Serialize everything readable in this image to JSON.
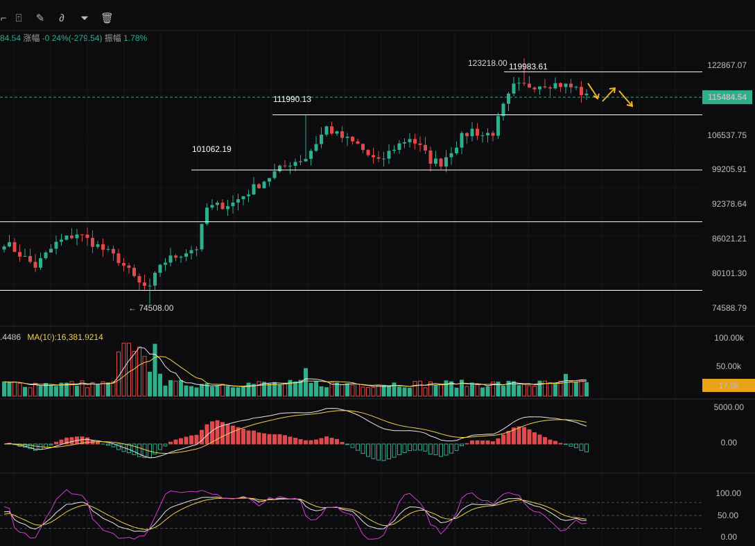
{
  "toolbar": {
    "tools": [
      {
        "name": "crop-icon",
        "glyph": "⌐"
      },
      {
        "name": "lock-icon",
        "glyph": "⍐"
      },
      {
        "name": "edit-note-icon",
        "glyph": "✎"
      },
      {
        "name": "magnet-icon",
        "glyph": "∂"
      },
      {
        "name": "filter-icon",
        "glyph": "⏷"
      },
      {
        "name": "trash-icon",
        "glyph": "🗑"
      }
    ]
  },
  "info_bar": {
    "value": "84.54",
    "change_label": "涨幅",
    "change_value": "-0.24%(-279.54)",
    "amp_label": "振幅",
    "amp_value": "1.78%"
  },
  "volume_info": {
    "ma5_value": ".4486",
    "ma10_label": "MA(10):16,381.9214"
  },
  "colors": {
    "up": "#2fae8c",
    "down": "#e04a4d",
    "ma_white": "#e8e8e8",
    "ma_yellow": "#f0d34a",
    "kdj_pink": "#d33fd0",
    "current_price_bg": "#2fae8c",
    "volume_tag_bg": "#e8a317",
    "arrow": "#f0b429"
  },
  "chart_data": [
    {
      "type": "candlestick",
      "price_axis_ticks": [
        "122867.07",
        "106537.75",
        "99205.91",
        "92378.64",
        "86021.21",
        "80101.30",
        "74588.79"
      ],
      "current_price": "115484.54",
      "annotations": [
        "123218.00",
        "119983.61",
        "111990.13",
        "101062.19",
        "74508.00"
      ],
      "support_resistance_levels": [
        120500,
        111990.13,
        101062.19,
        90800,
        77200
      ],
      "ylim": [
        71500,
        126500
      ]
    },
    {
      "type": "bar",
      "name": "volume",
      "axis_ticks": [
        "100.00k",
        "50.00k"
      ],
      "current_tag": "17.0k",
      "ylim": [
        0,
        100000
      ]
    },
    {
      "type": "bar",
      "name": "macd",
      "axis_ticks": [
        "5000.00",
        "0.00"
      ],
      "ylim": [
        -3200,
        6000
      ]
    },
    {
      "type": "line",
      "name": "kdj",
      "axis_ticks": [
        "100.00",
        "50.00",
        "0.00"
      ],
      "ylim": [
        0,
        100
      ]
    }
  ]
}
